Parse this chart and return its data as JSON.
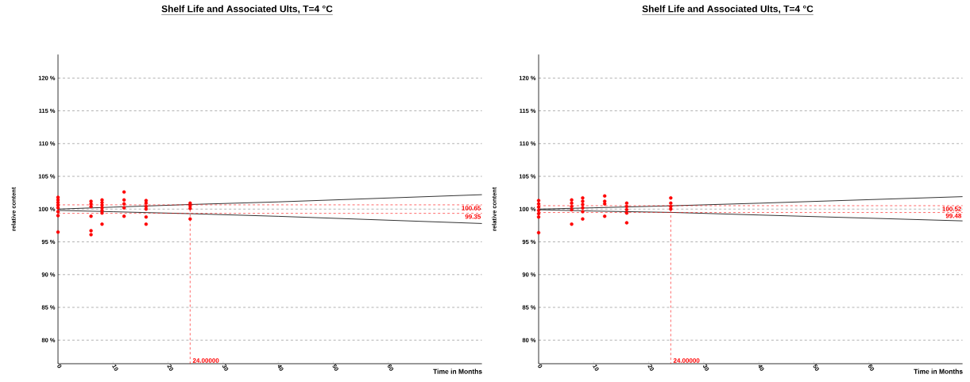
{
  "chart_data": [
    {
      "type": "scatter",
      "title": "Shelf Life and Associated Ults, T=4 °C",
      "xlabel": "Time in  Months",
      "ylabel": "relative content",
      "xlim": [
        0,
        77
      ],
      "ylim": [
        76.4,
        123.6
      ],
      "xticks": [
        0,
        10,
        20,
        30,
        40,
        50,
        60
      ],
      "yticks": [
        {
          "value": 80,
          "label": "80 %"
        },
        {
          "value": 85,
          "label": "85 %"
        },
        {
          "value": 90,
          "label": "90 %"
        },
        {
          "value": 95,
          "label": "95 %"
        },
        {
          "value": 100,
          "label": "100 %"
        },
        {
          "value": 105,
          "label": "105 %"
        },
        {
          "value": 110,
          "label": "110 %"
        },
        {
          "value": 115,
          "label": "115 %"
        },
        {
          "value": 120,
          "label": "120 %"
        }
      ],
      "grid": "y",
      "series": [
        {
          "marker": "circle",
          "color": "#ff0000",
          "x": [
            0,
            0,
            0,
            0,
            0,
            0,
            0,
            0,
            6,
            6,
            6,
            6,
            6,
            6,
            8,
            8,
            8,
            8,
            8,
            8,
            8,
            12,
            12,
            12,
            12,
            12,
            16,
            16,
            16,
            16,
            16,
            16,
            24,
            24,
            24,
            24
          ],
          "values": [
            101.8,
            101.4,
            101.0,
            100.6,
            100.2,
            99.6,
            99.0,
            96.5,
            101.2,
            100.8,
            100.4,
            98.9,
            96.7,
            96.1,
            101.4,
            101.0,
            100.6,
            100.2,
            99.8,
            99.4,
            97.7,
            102.6,
            101.4,
            100.8,
            100.2,
            98.9,
            101.3,
            100.9,
            100.4,
            100.0,
            98.8,
            97.7,
            100.9,
            100.5,
            100.1,
            98.5
          ]
        },
        {
          "type": "line",
          "marker": "none",
          "color": "#000000",
          "x": [
            0,
            10,
            24,
            40,
            77
          ],
          "values": [
            100.0,
            100.3,
            100.7,
            101.1,
            102.2
          ]
        },
        {
          "type": "line",
          "marker": "none",
          "color": "#000000",
          "x": [
            0,
            10,
            24,
            40,
            77
          ],
          "values": [
            99.8,
            99.6,
            99.3,
            98.9,
            97.8
          ]
        }
      ],
      "ref_lines": [
        {
          "axis": "y",
          "value": 100.65,
          "label": "100.65",
          "color": "#ff0000",
          "line_style": "dashed"
        },
        {
          "axis": "y",
          "value": 99.35,
          "label": "99.35",
          "color": "#ff0000",
          "line_style": "dashed"
        },
        {
          "axis": "x",
          "value": 24,
          "label": "24.00000",
          "color": "#ff0000",
          "line_style": "dashed"
        }
      ]
    },
    {
      "type": "scatter",
      "title": "Shelf Life and Associated Ults, T=4 °C",
      "xlabel": "Time in  Months",
      "ylabel": "relative content",
      "xlim": [
        0,
        77
      ],
      "ylim": [
        76.4,
        123.6
      ],
      "xticks": [
        0,
        10,
        20,
        30,
        40,
        50,
        60
      ],
      "yticks": [
        {
          "value": 80,
          "label": "80 %"
        },
        {
          "value": 85,
          "label": "85 %"
        },
        {
          "value": 90,
          "label": "90 %"
        },
        {
          "value": 95,
          "label": "95 %"
        },
        {
          "value": 100,
          "label": "100 %"
        },
        {
          "value": 105,
          "label": "105 %"
        },
        {
          "value": 110,
          "label": "110 %"
        },
        {
          "value": 115,
          "label": "115 %"
        },
        {
          "value": 120,
          "label": "120 %"
        }
      ],
      "grid": "y",
      "series": [
        {
          "marker": "circle",
          "color": "#ff0000",
          "x": [
            0,
            0,
            0,
            0,
            0,
            0,
            0,
            6,
            6,
            6,
            6,
            6,
            8,
            8,
            8,
            8,
            8,
            8,
            12,
            12,
            12,
            12,
            16,
            16,
            16,
            16,
            16,
            24,
            24,
            24,
            24
          ],
          "values": [
            101.3,
            100.8,
            100.3,
            99.8,
            99.3,
            98.8,
            96.4,
            101.4,
            100.9,
            100.4,
            99.9,
            97.7,
            101.7,
            101.2,
            100.7,
            100.2,
            99.6,
            98.5,
            102.0,
            101.2,
            100.8,
            98.9,
            100.9,
            100.4,
            99.9,
            99.4,
            97.9,
            101.7,
            100.9,
            100.4,
            100.0
          ]
        },
        {
          "type": "line",
          "marker": "none",
          "color": "#000000",
          "x": [
            0,
            10,
            24,
            40,
            77
          ],
          "values": [
            100.0,
            100.2,
            100.5,
            100.9,
            101.9
          ]
        },
        {
          "type": "line",
          "marker": "none",
          "color": "#000000",
          "x": [
            0,
            10,
            24,
            40,
            77
          ],
          "values": [
            99.9,
            99.7,
            99.5,
            99.1,
            98.2
          ]
        }
      ],
      "ref_lines": [
        {
          "axis": "y",
          "value": 100.52,
          "label": "100.52",
          "color": "#ff0000",
          "line_style": "dashed"
        },
        {
          "axis": "y",
          "value": 99.48,
          "label": "99.48",
          "color": "#ff0000",
          "line_style": "dashed"
        },
        {
          "axis": "x",
          "value": 24,
          "label": "24.00000",
          "color": "#ff0000",
          "line_style": "dashed"
        }
      ]
    }
  ]
}
